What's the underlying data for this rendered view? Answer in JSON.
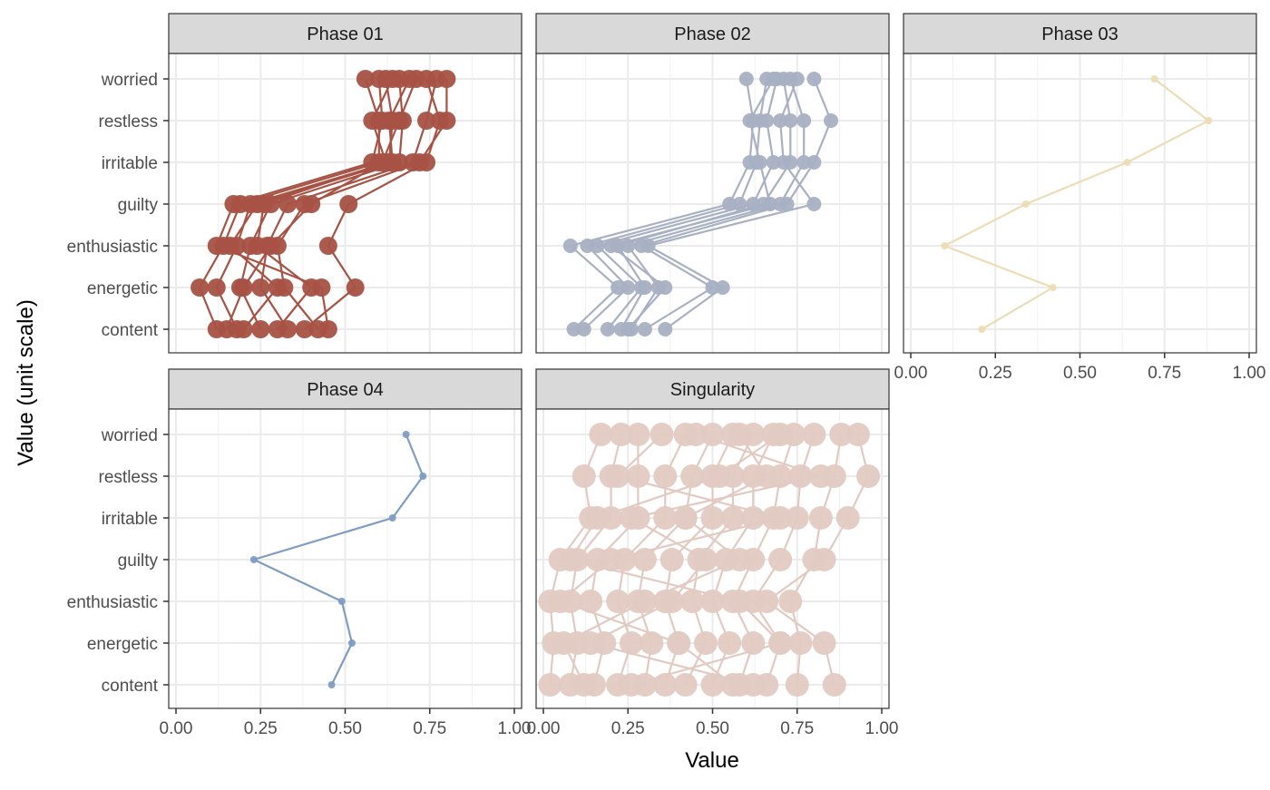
{
  "chart_data": {
    "type": "line",
    "orientation": "horizontal-profile",
    "xlabel": "Value",
    "ylabel": "Value (unit scale)",
    "xlim": [
      0,
      1
    ],
    "x_ticks": [
      "0.00",
      "0.25",
      "0.50",
      "0.75",
      "1.00"
    ],
    "categories": [
      "content",
      "energetic",
      "enthusiastic",
      "guilty",
      "irritable",
      "restless",
      "worried"
    ],
    "grid": true,
    "legend": "none",
    "facets": [
      {
        "title": "Phase 01",
        "color": "#A65244",
        "marker": "large",
        "series": [
          {
            "values": [
              0.12,
              0.07,
              0.14,
              0.19,
              0.6,
              0.6,
              0.56
            ]
          },
          {
            "values": [
              0.18,
              0.12,
              0.18,
              0.22,
              0.63,
              0.64,
              0.62
            ]
          },
          {
            "values": [
              0.25,
              0.19,
              0.22,
              0.28,
              0.66,
              0.67,
              0.66
            ]
          },
          {
            "values": [
              0.33,
              0.25,
              0.27,
              0.33,
              0.7,
              0.74,
              0.77
            ]
          },
          {
            "values": [
              0.42,
              0.32,
              0.3,
              0.38,
              0.72,
              0.8,
              0.8
            ]
          },
          {
            "values": [
              0.38,
              0.53,
              0.45,
              0.51,
              0.74,
              0.78,
              0.74
            ]
          },
          {
            "values": [
              0.2,
              0.3,
              0.16,
              0.24,
              0.64,
              0.63,
              0.69
            ]
          },
          {
            "values": [
              0.3,
              0.4,
              0.24,
              0.26,
              0.62,
              0.58,
              0.64
            ]
          },
          {
            "values": [
              0.45,
              0.43,
              0.12,
              0.17,
              0.58,
              0.61,
              0.6
            ]
          },
          {
            "values": [
              0.15,
              0.2,
              0.28,
              0.4,
              0.61,
              0.66,
              0.71
            ]
          }
        ]
      },
      {
        "title": "Phase 02",
        "color": "#A8B0C3",
        "marker": "medium",
        "series": [
          {
            "values": [
              0.09,
              0.22,
              0.08,
              0.55,
              0.61,
              0.62,
              0.6
            ]
          },
          {
            "values": [
              0.12,
              0.25,
              0.13,
              0.58,
              0.63,
              0.64,
              0.66
            ]
          },
          {
            "values": [
              0.19,
              0.29,
              0.16,
              0.62,
              0.68,
              0.66,
              0.69
            ]
          },
          {
            "values": [
              0.23,
              0.3,
              0.22,
              0.65,
              0.73,
              0.73,
              0.71
            ]
          },
          {
            "values": [
              0.26,
              0.34,
              0.25,
              0.7,
              0.77,
              0.77,
              0.73
            ]
          },
          {
            "values": [
              0.3,
              0.5,
              0.29,
              0.72,
              0.8,
              0.85,
              0.8
            ]
          },
          {
            "values": [
              0.36,
              0.53,
              0.31,
              0.8,
              0.71,
              0.7,
              0.75
            ]
          },
          {
            "values": [
              0.25,
              0.36,
              0.2,
              0.67,
              0.64,
              0.61,
              0.68
            ]
          }
        ]
      },
      {
        "title": "Phase 03",
        "color": "#EDDCB5",
        "marker": "small",
        "series": [
          {
            "values": [
              0.21,
              0.42,
              0.1,
              0.34,
              0.64,
              0.88,
              0.72
            ]
          }
        ]
      },
      {
        "title": "Phase 04",
        "color": "#7F9DC4",
        "marker": "small",
        "series": [
          {
            "values": [
              0.46,
              0.52,
              0.49,
              0.23,
              0.64,
              0.73,
              0.68
            ]
          }
        ]
      },
      {
        "title": "Singularity",
        "color": "#E2CAC2",
        "marker": "xlarge",
        "series": [
          {
            "values": [
              0.02,
              0.03,
              0.02,
              0.05,
              0.14,
              0.12,
              0.17
            ]
          },
          {
            "values": [
              0.08,
              0.1,
              0.08,
              0.1,
              0.2,
              0.2,
              0.23
            ]
          },
          {
            "values": [
              0.15,
              0.18,
              0.14,
              0.16,
              0.28,
              0.28,
              0.28
            ]
          },
          {
            "values": [
              0.22,
              0.26,
              0.22,
              0.24,
              0.36,
              0.36,
              0.42
            ]
          },
          {
            "values": [
              0.3,
              0.32,
              0.28,
              0.3,
              0.42,
              0.44,
              0.5
            ]
          },
          {
            "values": [
              0.36,
              0.4,
              0.36,
              0.38,
              0.5,
              0.5,
              0.56
            ]
          },
          {
            "values": [
              0.42,
              0.48,
              0.44,
              0.46,
              0.56,
              0.56,
              0.62
            ]
          },
          {
            "values": [
              0.5,
              0.55,
              0.5,
              0.54,
              0.62,
              0.62,
              0.68
            ]
          },
          {
            "values": [
              0.58,
              0.62,
              0.56,
              0.62,
              0.68,
              0.7,
              0.74
            ]
          },
          {
            "values": [
              0.66,
              0.7,
              0.62,
              0.7,
              0.75,
              0.76,
              0.8
            ]
          },
          {
            "values": [
              0.75,
              0.76,
              0.73,
              0.8,
              0.82,
              0.86,
              0.88
            ]
          },
          {
            "values": [
              0.86,
              0.83,
              0.66,
              0.83,
              0.9,
              0.96,
              0.93
            ]
          },
          {
            "values": [
              0.12,
              0.06,
              0.3,
              0.58,
              0.42,
              0.66,
              0.58
            ]
          },
          {
            "values": [
              0.56,
              0.4,
              0.05,
              0.2,
              0.7,
              0.22,
              0.35
            ]
          },
          {
            "values": [
              0.26,
              0.7,
              0.58,
              0.08,
              0.16,
              0.52,
              0.7
            ]
          },
          {
            "values": [
              0.62,
              0.14,
              0.38,
              0.48,
              0.26,
              0.82,
              0.45
            ]
          }
        ]
      }
    ]
  }
}
